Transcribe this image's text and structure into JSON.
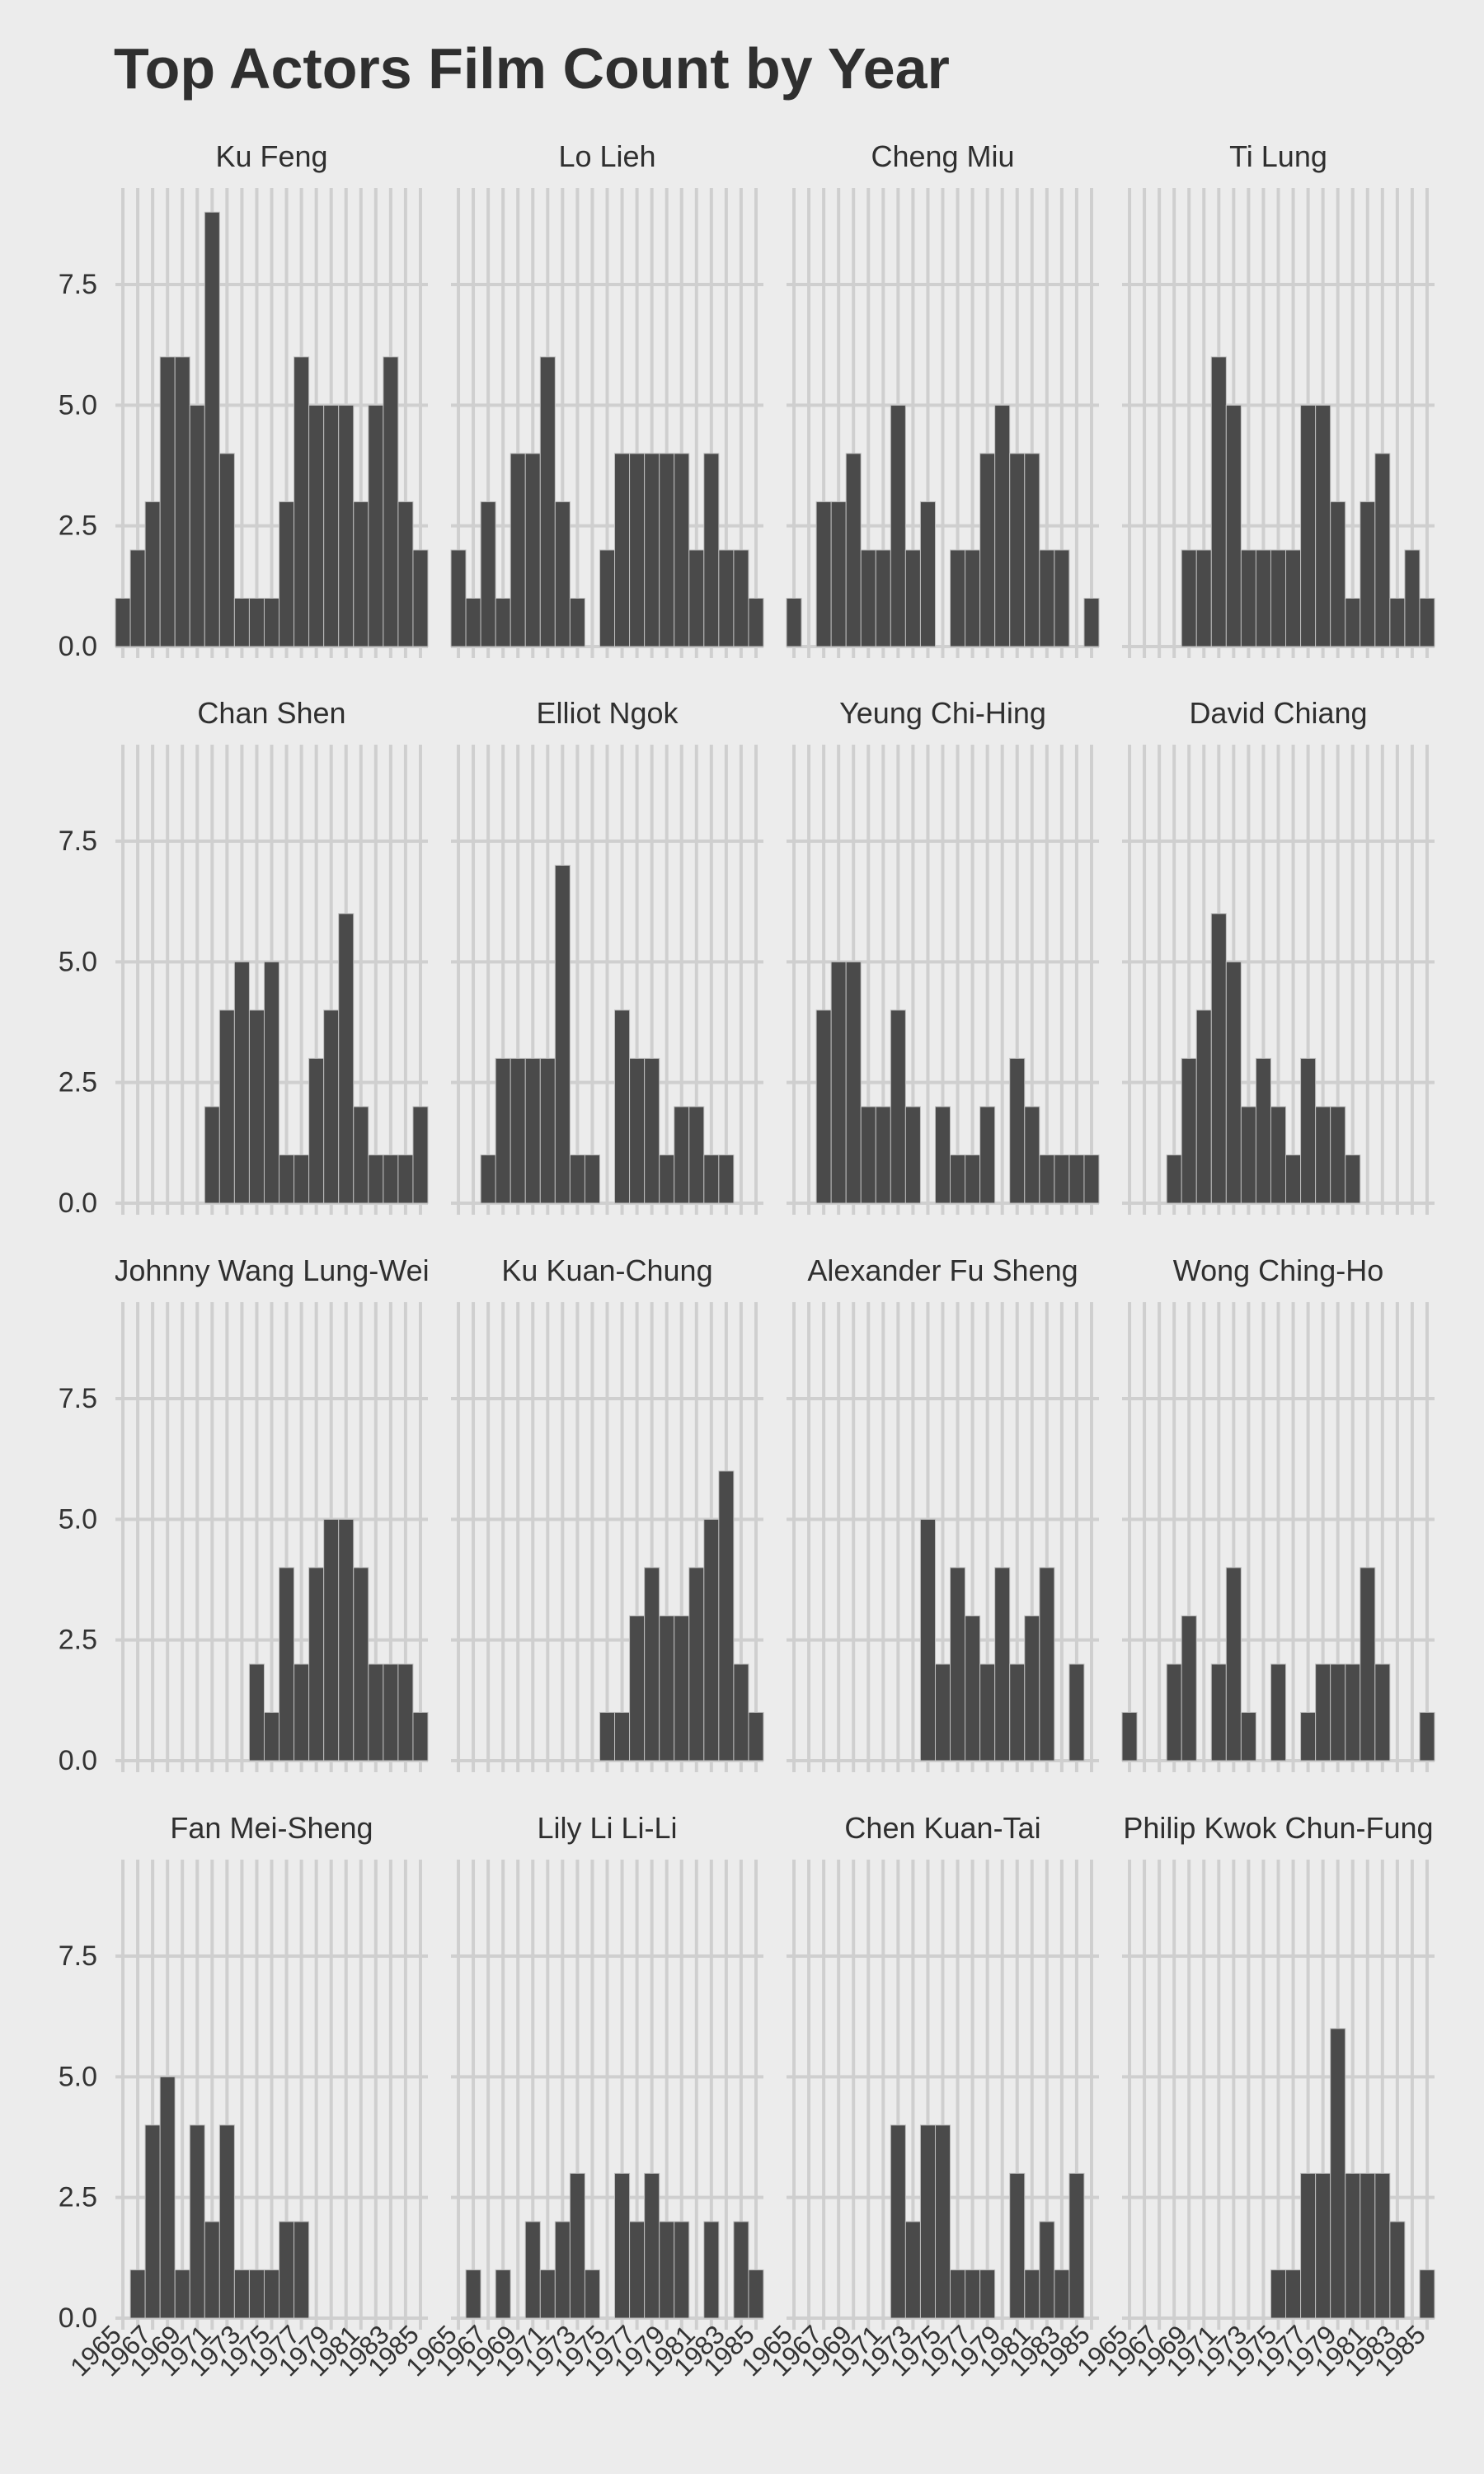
{
  "chart_data": {
    "type": "bar",
    "title": "Top Actors Film Count by Year",
    "xlabel": "",
    "ylabel": "",
    "years": [
      1965,
      1966,
      1967,
      1968,
      1969,
      1970,
      1971,
      1972,
      1973,
      1974,
      1975,
      1976,
      1977,
      1978,
      1979,
      1980,
      1981,
      1982,
      1983,
      1984,
      1985
    ],
    "x_tick_labels": [
      "1965",
      "1967",
      "1969",
      "1971",
      "1973",
      "1975",
      "1977",
      "1979",
      "1981",
      "1983",
      "1985"
    ],
    "ylim": [
      0,
      9.5
    ],
    "y_ticks": [
      0,
      2.5,
      5,
      7.5
    ],
    "y_tick_labels": [
      "0.0",
      "2.5",
      "5.0",
      "7.5"
    ],
    "grid": true,
    "colors": {
      "background": "#ececec",
      "grid": "#cfcfcf",
      "bar": "#4a4a4a",
      "bar_edge": "#bdbdbd"
    },
    "panels": [
      {
        "name": "Ku Feng",
        "values": [
          1,
          2,
          3,
          6,
          6,
          5,
          9,
          4,
          1,
          1,
          1,
          3,
          6,
          5,
          5,
          5,
          3,
          5,
          6,
          3,
          2
        ]
      },
      {
        "name": "Lo Lieh",
        "values": [
          2,
          1,
          3,
          1,
          4,
          4,
          6,
          3,
          1,
          0,
          2,
          4,
          4,
          4,
          4,
          4,
          2,
          4,
          2,
          2,
          1
        ]
      },
      {
        "name": "Cheng Miu",
        "values": [
          1,
          0,
          3,
          3,
          4,
          2,
          2,
          5,
          2,
          3,
          0,
          2,
          2,
          4,
          5,
          4,
          4,
          2,
          2,
          0,
          1
        ]
      },
      {
        "name": "Ti Lung",
        "values": [
          0,
          0,
          0,
          0,
          2,
          2,
          6,
          5,
          2,
          2,
          2,
          2,
          5,
          5,
          3,
          1,
          3,
          4,
          1,
          2,
          1
        ]
      },
      {
        "name": "Chan Shen",
        "values": [
          0,
          0,
          0,
          0,
          0,
          0,
          2,
          4,
          5,
          4,
          5,
          1,
          1,
          3,
          4,
          6,
          2,
          1,
          1,
          1,
          2
        ]
      },
      {
        "name": "Elliot Ngok",
        "values": [
          0,
          0,
          1,
          3,
          3,
          3,
          3,
          7,
          1,
          1,
          0,
          4,
          3,
          3,
          1,
          2,
          2,
          1,
          1,
          0,
          0
        ]
      },
      {
        "name": "Yeung Chi-Hing",
        "values": [
          0,
          0,
          4,
          5,
          5,
          2,
          2,
          4,
          2,
          0,
          2,
          1,
          1,
          2,
          0,
          3,
          2,
          1,
          1,
          1,
          1
        ]
      },
      {
        "name": "David Chiang",
        "values": [
          0,
          0,
          0,
          1,
          3,
          4,
          6,
          5,
          2,
          3,
          2,
          1,
          3,
          2,
          2,
          1,
          0,
          0,
          0,
          0,
          0
        ]
      },
      {
        "name": "Johnny Wang Lung-Wei",
        "values": [
          0,
          0,
          0,
          0,
          0,
          0,
          0,
          0,
          0,
          2,
          1,
          4,
          2,
          4,
          5,
          5,
          4,
          2,
          2,
          2,
          1
        ]
      },
      {
        "name": "Ku Kuan-Chung",
        "values": [
          0,
          0,
          0,
          0,
          0,
          0,
          0,
          0,
          0,
          0,
          1,
          1,
          3,
          4,
          3,
          3,
          4,
          5,
          6,
          2,
          1
        ]
      },
      {
        "name": "Alexander Fu Sheng",
        "values": [
          0,
          0,
          0,
          0,
          0,
          0,
          0,
          0,
          0,
          5,
          2,
          4,
          3,
          2,
          4,
          2,
          3,
          4,
          0,
          2,
          0
        ]
      },
      {
        "name": "Wong Ching-Ho",
        "values": [
          1,
          0,
          0,
          2,
          3,
          0,
          2,
          4,
          1,
          0,
          2,
          0,
          1,
          2,
          2,
          2,
          4,
          2,
          0,
          0,
          1
        ]
      },
      {
        "name": "Fan Mei-Sheng",
        "values": [
          0,
          1,
          4,
          5,
          1,
          4,
          2,
          4,
          1,
          1,
          1,
          2,
          2,
          0,
          0,
          0,
          0,
          0,
          0,
          0,
          0
        ]
      },
      {
        "name": "Lily Li Li-Li",
        "values": [
          0,
          1,
          0,
          1,
          0,
          2,
          1,
          2,
          3,
          1,
          0,
          3,
          2,
          3,
          2,
          2,
          0,
          2,
          0,
          2,
          1
        ]
      },
      {
        "name": "Chen Kuan-Tai",
        "values": [
          0,
          0,
          0,
          0,
          0,
          0,
          0,
          4,
          2,
          4,
          4,
          1,
          1,
          1,
          0,
          3,
          1,
          2,
          1,
          3,
          0
        ]
      },
      {
        "name": "Philip Kwok Chun-Fung",
        "values": [
          0,
          0,
          0,
          0,
          0,
          0,
          0,
          0,
          0,
          0,
          1,
          1,
          3,
          3,
          6,
          3,
          3,
          3,
          2,
          0,
          1
        ]
      }
    ]
  }
}
